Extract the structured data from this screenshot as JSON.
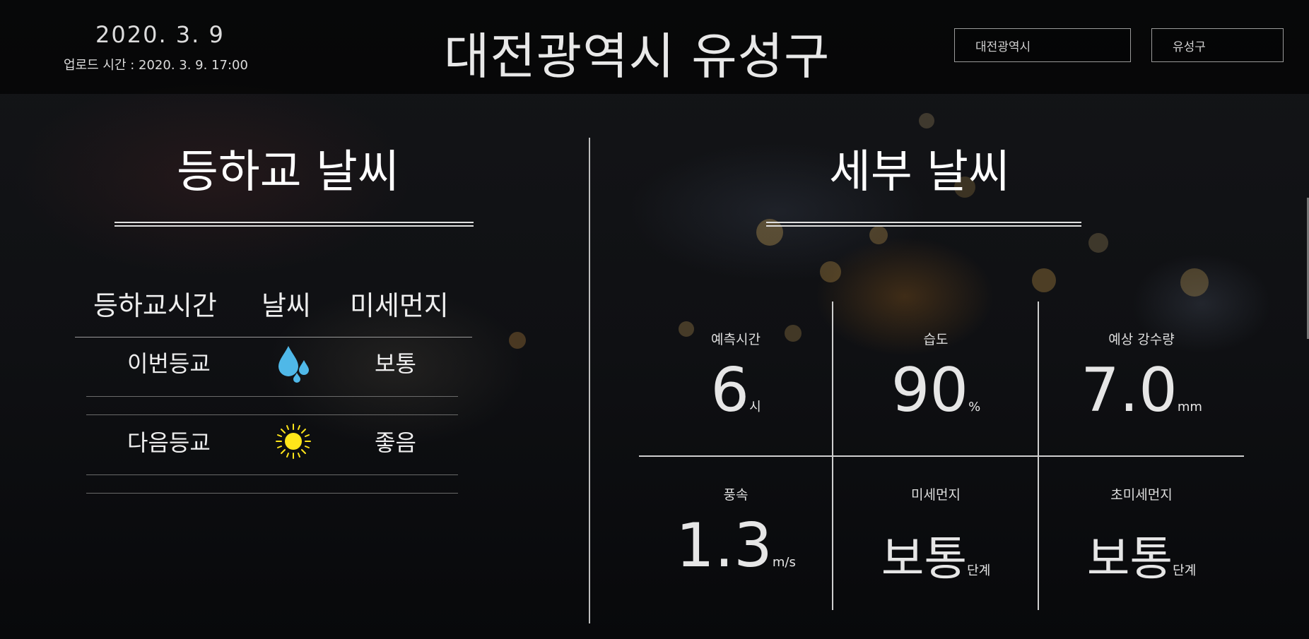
{
  "header": {
    "date": "2020. 3. 9",
    "upload_time": "업로드 시간 : 2020. 3. 9. 17:00",
    "location_title": "대전광역시 유성구",
    "city_select": "대전광역시",
    "district_select": "유성구"
  },
  "commute": {
    "title": "등하교 날씨",
    "columns": [
      "등하교시간",
      "날씨",
      "미세먼지"
    ],
    "rows": [
      {
        "time": "이번등교",
        "weather_icon": "raindrops-icon",
        "dust": "보통"
      },
      {
        "time": "다음등교",
        "weather_icon": "sun-icon",
        "dust": "좋음"
      }
    ]
  },
  "detail": {
    "title": "세부 날씨",
    "stats": [
      {
        "label": "예측시간",
        "value": "6",
        "unit": "시"
      },
      {
        "label": "습도",
        "value": "90",
        "unit": "%"
      },
      {
        "label": "예상 강수량",
        "value": "7.0",
        "unit": "mm"
      },
      {
        "label": "풍속",
        "value": "1.3",
        "unit": "m/s"
      },
      {
        "label": "미세먼지",
        "value": "보통",
        "unit": "단계"
      },
      {
        "label": "초미세먼지",
        "value": "보통",
        "unit": "단계"
      }
    ]
  },
  "colors": {
    "rain_icon": "#4fb8e8",
    "sun_icon": "#ffe51a",
    "text": "#e6e6e6"
  }
}
